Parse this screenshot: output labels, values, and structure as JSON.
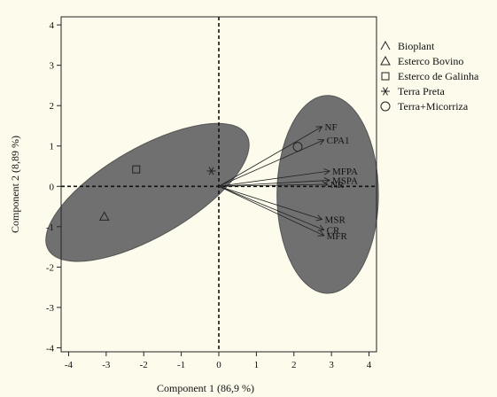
{
  "chart_data": {
    "type": "scatter",
    "title": "",
    "xlabel": "Component  1  (86,9 %)",
    "ylabel": "Component 2  (8,89 %)",
    "xlim": [
      -4.2,
      4.2
    ],
    "ylim": [
      -4.1,
      4.2
    ],
    "x_ticks": [
      -4,
      -3,
      -2,
      -1,
      0,
      1,
      2,
      3,
      4
    ],
    "y_ticks": [
      -4,
      -3,
      -2,
      -1,
      0,
      1,
      2,
      3,
      4
    ],
    "grid": false,
    "legend_position": "top-right",
    "colors": {
      "ellipse": "#707070",
      "marker": "#222222",
      "background": "#fdfbec"
    },
    "series": [
      {
        "name": "Bioplant",
        "marker": "caret",
        "points": []
      },
      {
        "name": "Esterco Bovino",
        "marker": "triangle",
        "points": [
          [
            -3.05,
            -0.75
          ]
        ]
      },
      {
        "name": "Esterco de Galinha",
        "marker": "square",
        "points": [
          [
            -2.2,
            0.42
          ]
        ]
      },
      {
        "name": "Terra Preta",
        "marker": "asterisk",
        "points": [
          [
            -0.2,
            0.38
          ]
        ]
      },
      {
        "name": "Terra+Micorriza",
        "marker": "circle",
        "points": [
          [
            2.1,
            0.98
          ]
        ]
      }
    ],
    "vectors": [
      {
        "label": "NF",
        "x": 2.75,
        "y": 1.48
      },
      {
        "label": "CPA1",
        "x": 2.8,
        "y": 1.15
      },
      {
        "label": "MFPA",
        "x": 2.95,
        "y": 0.38
      },
      {
        "label": "MSPA",
        "x": 2.95,
        "y": 0.15
      },
      {
        "label": "NR",
        "x": 2.9,
        "y": 0.05
      },
      {
        "label": "MSR",
        "x": 2.75,
        "y": -0.82
      },
      {
        "label": "CR",
        "x": 2.8,
        "y": -1.08
      },
      {
        "label": "MFR",
        "x": 2.8,
        "y": -1.22
      }
    ],
    "ellipses": [
      {
        "cx": -1.9,
        "cy": -0.15,
        "rx": 3.05,
        "ry": 1.1,
        "angle_deg": 30
      },
      {
        "cx": 2.9,
        "cy": -0.2,
        "rx": 1.35,
        "ry": 2.45,
        "angle_deg": 0
      }
    ]
  }
}
